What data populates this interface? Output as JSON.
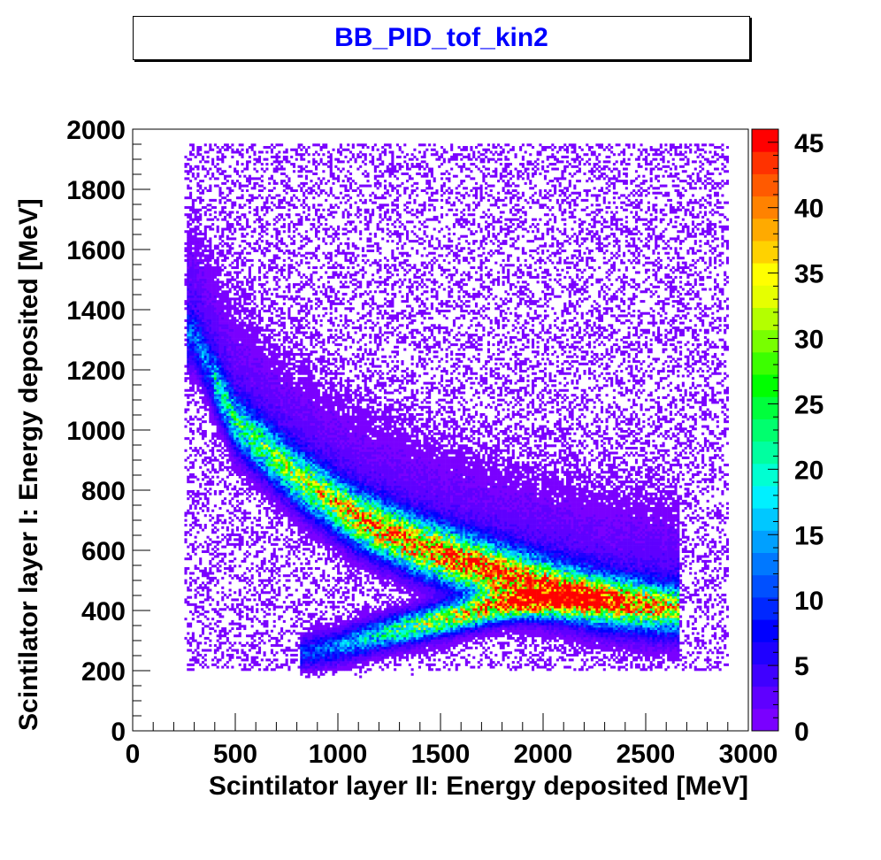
{
  "chart_data": {
    "type": "heatmap",
    "title": "BB_PID_tof_kin2",
    "xlabel": "Scintilator layer II: Energy deposited [MeV]",
    "ylabel": "Scintilator layer I: Energy deposited [MeV]",
    "xlim": [
      0,
      3000
    ],
    "ylim": [
      0,
      2000
    ],
    "x_ticks": [
      0,
      500,
      1000,
      1500,
      2000,
      2500,
      3000
    ],
    "y_ticks": [
      0,
      200,
      400,
      600,
      800,
      1000,
      1200,
      1400,
      1600,
      1800,
      2000
    ],
    "z_range": [
      0,
      46
    ],
    "z_ticks": [
      0,
      5,
      10,
      15,
      20,
      25,
      30,
      35,
      40,
      45
    ],
    "palette": [
      "#7a00ff",
      "#5f00ff",
      "#3f00ff",
      "#1f00ff",
      "#0000ff",
      "#0028ff",
      "#0050ff",
      "#0078ff",
      "#00a0ff",
      "#00c8ff",
      "#00f0ff",
      "#00ffd2",
      "#00ffa0",
      "#00ff6e",
      "#00ff3c",
      "#00ff00",
      "#3cff00",
      "#78ff00",
      "#b4ff00",
      "#e6ff00",
      "#ffff00",
      "#ffd200",
      "#ffaa00",
      "#ff8200",
      "#ff5a00",
      "#ff3200",
      "#ff0000"
    ],
    "bands": [
      {
        "name": "",
        "ridge_x": [
          300,
          500,
          800,
          1100,
          1400,
          1700,
          2000,
          2300,
          2600
        ],
        "ridge_y": [
          1300,
          1020,
          840,
          700,
          610,
          540,
          480,
          430,
          400
        ],
        "peak_counts": 38
      },
      {
        "name": "",
        "ridge_x": [
          850,
          1000,
          1200,
          1500,
          1800,
          2100,
          2400,
          2600
        ],
        "ridge_y": [
          260,
          280,
          320,
          370,
          420,
          440,
          430,
          410
        ],
        "peak_counts": 40
      }
    ],
    "grid": false,
    "legend": "right"
  }
}
